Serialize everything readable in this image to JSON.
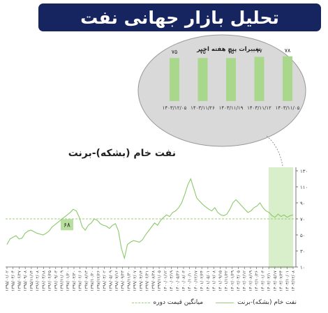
{
  "banner": {
    "title": "تحلیل بازار جهانی نفت"
  },
  "colors": {
    "banner_bg": "#16255f",
    "line": "#8cc96a",
    "bar": "#a9d78c",
    "highlight": "#cfeabd",
    "bubble": "#dcdcdc"
  },
  "chart_data": [
    {
      "type": "bar",
      "title": "تغییرات پنج هفته اخیر",
      "categories": [
        "۱۴۰۳/۱۱/۰۵",
        "۱۴۰۳/۱۱/۱۲",
        "۱۴۰۳/۱۱/۱۹",
        "۱۴۰۳/۱۱/۲۶",
        "۱۴۰۳/۱۲/۰۵"
      ],
      "values": [
        78,
        77,
        75,
        75,
        75
      ],
      "value_labels": [
        "۷۸",
        "۷۷",
        "۷۵",
        "۷۵",
        "۷۵"
      ],
      "ylim": [
        0,
        85
      ]
    },
    {
      "type": "line",
      "title": "نفت خام (بشکه)-برنت",
      "ylim": [
        10,
        130
      ],
      "yticks": [
        10,
        30,
        50,
        70,
        90,
        110,
        130
      ],
      "ytick_labels": [
        "۱۰",
        "۳۰",
        "۵۰",
        "۷۰",
        "۹۰",
        "۱۱۰",
        "۱۳۰"
      ],
      "xtick_labels": [
        "۱۳۹۵/۰۱/۰۲",
        "۱۳۹۵/۰۴/۰۴",
        "۱۳۹۵/۰۶/۲۷",
        "۱۳۹۵/۰۹/۰۸",
        "۱۳۹۵/۱۱/۱۴",
        "۱۳۹۶/۰۲/۰۸",
        "۱۳۹۶/۰۴/۱۸",
        "۱۳۹۶/۰۶/۲۵",
        "۱۳۹۶/۰۹/۰۳",
        "۱۳۹۶/۱۱/۰۹",
        "۱۳۹۷/۰۱/۲۰",
        "۱۳۹۷/۰۳/۳۰",
        "۱۳۹۷/۰۶/۰۶",
        "۱۳۹۷/۰۸/۱۳",
        "۱۳۹۷/۱۰/۲۰",
        "۱۳۹۷/۱۲/۲۶",
        "۱۳۹۸/۰۳/۰۲",
        "۱۳۹۸/۰۵/۰۹",
        "۱۳۹۸/۰۷/۱۶",
        "۱۳۹۸/۰۹/۲۳",
        "۱۳۹۸/۱۱/۳۰",
        "۱۳۹۹/۰۲/۰۷",
        "۱۳۹۹/۰۴/۱۴",
        "۱۳۹۹/۰۶/۲۱",
        "۱۳۹۹/۰۸/۲۸",
        "۱۳۹۹/۱۱/۰۵",
        "۱۴۰۰/۰۱/۱۲",
        "۱۴۰۰/۰۳/۱۹",
        "۱۴۰۰/۰۵/۲۶",
        "۱۴۰۰/۰۸/۰۳",
        "۱۴۰۰/۱۰/۱۰",
        "۱۴۰۰/۱۲/۱۷",
        "۱۴۰۱/۰۲/۲۴",
        "۱۴۰۱/۰۵/۰۱",
        "۱۴۰۱/۰۷/۰۸",
        "۱۴۰۱/۰۹/۱۵",
        "۱۴۰۱/۱۱/۲۲",
        "۱۴۰۲/۰۱/۲۹",
        "۱۴۰۲/۰۴/۰۵",
        "۱۴۰۲/۰۶/۱۲",
        "۱۴۰۲/۰۸/۱۹",
        "۱۴۰۲/۱۰/۲۶",
        "۱۴۰۳/۰۱/۰۳",
        "۱۴۰۳/۰۳/۱۰",
        "۱۴۰۳/۰۵/۱۷",
        "۱۴۰۳/۰۷/۲۴",
        "۱۴۰۳/۱۰/۰۱",
        "۱۴۰۳/۱۲/۰۸"
      ],
      "series": [
        {
          "name": "نفت خام (بشکه)-برنت",
          "values": [
            38,
            45,
            47,
            49,
            45,
            46,
            52,
            55,
            56,
            54,
            52,
            51,
            50,
            52,
            55,
            60,
            63,
            66,
            69,
            72,
            75,
            78,
            82,
            80,
            72,
            60,
            56,
            62,
            65,
            70,
            68,
            64,
            62,
            61,
            58,
            62,
            64,
            55,
            33,
            21,
            38,
            41,
            43,
            42,
            41,
            44,
            50,
            55,
            60,
            65,
            62,
            68,
            72,
            75,
            73,
            78,
            80,
            84,
            90,
            100,
            112,
            120,
            108,
            96,
            92,
            88,
            85,
            82,
            80,
            84,
            78,
            75,
            74,
            76,
            82,
            90,
            94,
            90,
            86,
            82,
            78,
            80,
            84,
            86,
            90,
            84,
            80,
            78,
            74,
            72,
            76,
            73,
            75,
            72,
            74,
            75
          ]
        }
      ],
      "reference_line": {
        "name": "میانگین قیمت دوره",
        "value": 70
      },
      "annotation": {
        "text": "۶۸",
        "value": 68
      },
      "highlight_region": "last five weeks",
      "legend": [
        "نفت خام (بشکه)-برنت",
        "میانگین قیمت دوره"
      ]
    }
  ]
}
